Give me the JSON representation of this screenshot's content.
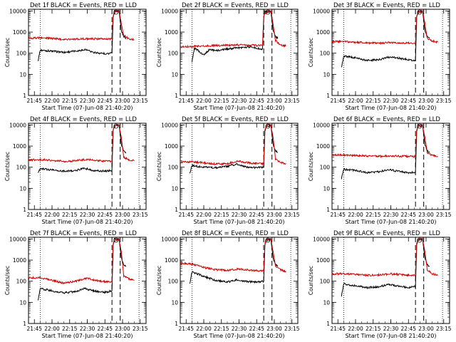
{
  "chart_data": [
    {
      "type": "line",
      "title": "Det 1f BLACK = Events, RED = LLD",
      "xlabel": "Start Time (07-Jun-08 21:40:20)",
      "ylabel": "Counts/sec",
      "yscale": "log",
      "ylim": [
        1,
        12000
      ],
      "xlim_minutes": [
        0,
        100
      ],
      "xticks": [
        "21:45",
        "22:00",
        "22:15",
        "22:30",
        "22:45",
        "23:00",
        "23:15"
      ],
      "xticks_minutes": [
        5,
        20,
        35,
        50,
        65,
        80,
        95
      ],
      "yticks": [
        "1",
        "10",
        "100",
        "1000",
        "10000"
      ],
      "yticks_values": [
        1,
        10,
        100,
        1000,
        10000
      ],
      "series": [
        {
          "name": "Events",
          "color": "#000000",
          "x": [
            8,
            10,
            20,
            30,
            40,
            48,
            55,
            65,
            71,
            72,
            73,
            75,
            77,
            79,
            81,
            83
          ],
          "y": [
            40,
            140,
            125,
            110,
            125,
            150,
            110,
            95,
            100,
            5000,
            9500,
            9000,
            10000,
            1200,
            600,
            500
          ]
        },
        {
          "name": "LLD",
          "color": "#d00000",
          "x": [
            0,
            10,
            20,
            30,
            40,
            50,
            60,
            71,
            72,
            74,
            77,
            79,
            81,
            85,
            88,
            90
          ],
          "y": [
            520,
            530,
            500,
            460,
            470,
            480,
            475,
            470,
            6000,
            9500,
            9800,
            2500,
            700,
            500,
            450,
            440
          ]
        }
      ],
      "vlines_dotted_minutes": [
        10,
        94
      ],
      "vlines_dashed_minutes": [
        71,
        78
      ]
    },
    {
      "type": "line",
      "title": "Det 2f BLACK = Events, RED = LLD",
      "xlabel": "Start Time (07-Jun-08 21:40:20)",
      "ylabel": "Counts/sec",
      "yscale": "log",
      "ylim": [
        1,
        12000
      ],
      "xlim_minutes": [
        0,
        100
      ],
      "xticks": [
        "21:45",
        "22:00",
        "22:15",
        "22:30",
        "22:45",
        "23:00",
        "23:15"
      ],
      "xticks_minutes": [
        5,
        20,
        35,
        50,
        65,
        80,
        95
      ],
      "yticks": [
        "1",
        "10",
        "100",
        "1000",
        "10000"
      ],
      "yticks_values": [
        1,
        10,
        100,
        1000,
        10000
      ],
      "series": [
        {
          "name": "Events",
          "color": "#000000",
          "x": [
            10,
            12,
            15,
            20,
            25,
            30,
            40,
            50,
            60,
            65,
            70,
            71,
            72,
            74,
            77,
            79,
            81,
            83
          ],
          "y": [
            40,
            170,
            140,
            80,
            150,
            130,
            160,
            180,
            200,
            170,
            160,
            5000,
            9500,
            9000,
            10000,
            1200,
            600,
            500
          ]
        },
        {
          "name": "LLD",
          "color": "#d00000",
          "x": [
            0,
            10,
            20,
            30,
            40,
            50,
            60,
            70,
            71,
            74,
            77,
            79,
            81,
            85,
            90
          ],
          "y": [
            200,
            210,
            220,
            230,
            240,
            250,
            240,
            230,
            6000,
            9500,
            9800,
            2500,
            400,
            250,
            220
          ]
        }
      ],
      "vlines_dotted_minutes": [
        10,
        94
      ],
      "vlines_dashed_minutes": [
        71,
        78
      ]
    },
    {
      "type": "line",
      "title": "Det 3f BLACK = Events, RED = LLD",
      "xlabel": "Start Time (07-Jun-08 21:40:20)",
      "ylabel": "Counts/sec",
      "yscale": "log",
      "ylim": [
        1,
        12000
      ],
      "xlim_minutes": [
        0,
        100
      ],
      "xticks": [
        "21:45",
        "22:00",
        "22:15",
        "22:30",
        "22:45",
        "23:00",
        "23:15"
      ],
      "xticks_minutes": [
        5,
        20,
        35,
        50,
        65,
        80,
        95
      ],
      "yticks": [
        "1",
        "10",
        "100",
        "1000",
        "10000"
      ],
      "yticks_values": [
        1,
        10,
        100,
        1000,
        10000
      ],
      "series": [
        {
          "name": "Events",
          "color": "#000000",
          "x": [
            8,
            10,
            20,
            30,
            40,
            48,
            55,
            65,
            71,
            72,
            73,
            75,
            77,
            79,
            81,
            83
          ],
          "y": [
            20,
            75,
            60,
            45,
            50,
            65,
            60,
            50,
            45,
            5000,
            9500,
            9000,
            10000,
            1200,
            600,
            500
          ]
        },
        {
          "name": "LLD",
          "color": "#d00000",
          "x": [
            0,
            10,
            20,
            30,
            40,
            50,
            60,
            71,
            72,
            74,
            77,
            79,
            81,
            85,
            90
          ],
          "y": [
            360,
            350,
            330,
            310,
            300,
            320,
            300,
            290,
            6000,
            9500,
            9800,
            2500,
            500,
            380,
            340
          ]
        }
      ],
      "vlines_dotted_minutes": [
        10,
        94
      ],
      "vlines_dashed_minutes": [
        71,
        78
      ]
    },
    {
      "type": "line",
      "title": "Det 4f BLACK = Events, RED = LLD",
      "xlabel": "Start Time (07-Jun-08 21:40:20)",
      "ylabel": "Counts/sec",
      "yscale": "log",
      "ylim": [
        1,
        12000
      ],
      "xlim_minutes": [
        0,
        100
      ],
      "xticks": [
        "21:45",
        "22:00",
        "22:15",
        "22:30",
        "22:45",
        "23:00",
        "23:15"
      ],
      "xticks_minutes": [
        5,
        20,
        35,
        50,
        65,
        80,
        95
      ],
      "yticks": [
        "1",
        "10",
        "100",
        "1000",
        "10000"
      ],
      "yticks_values": [
        1,
        10,
        100,
        1000,
        10000
      ],
      "series": [
        {
          "name": "Events",
          "color": "#000000",
          "x": [
            8,
            10,
            20,
            30,
            40,
            48,
            55,
            65,
            71,
            72,
            73,
            75,
            77,
            79,
            81,
            83
          ],
          "y": [
            50,
            85,
            75,
            65,
            70,
            90,
            70,
            65,
            70,
            5000,
            9500,
            9000,
            10000,
            1200,
            600,
            500
          ]
        },
        {
          "name": "LLD",
          "color": "#d00000",
          "x": [
            0,
            10,
            20,
            30,
            40,
            50,
            60,
            71,
            72,
            74,
            77,
            79,
            81,
            85,
            90
          ],
          "y": [
            220,
            230,
            210,
            190,
            200,
            240,
            200,
            190,
            6000,
            9500,
            9800,
            2500,
            300,
            230,
            200
          ]
        }
      ],
      "vlines_dotted_minutes": [
        10,
        94
      ],
      "vlines_dashed_minutes": [
        71,
        78
      ]
    },
    {
      "type": "line",
      "title": "Det 5f BLACK = Events, RED = LLD",
      "xlabel": "Start Time (07-Jun-08 21:40:20)",
      "ylabel": "Counts/sec",
      "yscale": "log",
      "ylim": [
        1,
        12000
      ],
      "xlim_minutes": [
        0,
        100
      ],
      "xticks": [
        "21:45",
        "22:00",
        "22:15",
        "22:30",
        "22:45",
        "23:00",
        "23:15"
      ],
      "xticks_minutes": [
        5,
        20,
        35,
        50,
        65,
        80,
        95
      ],
      "yticks": [
        "1",
        "10",
        "100",
        "1000",
        "10000"
      ],
      "yticks_values": [
        1,
        10,
        100,
        1000,
        10000
      ],
      "series": [
        {
          "name": "Events",
          "color": "#000000",
          "x": [
            8,
            10,
            20,
            30,
            40,
            48,
            55,
            65,
            71,
            72,
            73,
            75,
            77,
            79,
            81,
            83
          ],
          "y": [
            50,
            120,
            100,
            95,
            110,
            140,
            105,
            95,
            100,
            5000,
            9500,
            9000,
            10000,
            1200,
            600,
            500
          ]
        },
        {
          "name": "LLD",
          "color": "#d00000",
          "x": [
            0,
            10,
            20,
            30,
            40,
            50,
            60,
            71,
            72,
            74,
            77,
            79,
            81,
            85,
            90
          ],
          "y": [
            170,
            180,
            160,
            140,
            150,
            190,
            155,
            145,
            6000,
            9500,
            9800,
            2500,
            250,
            170,
            150
          ]
        }
      ],
      "vlines_dotted_minutes": [
        10,
        94
      ],
      "vlines_dashed_minutes": [
        71,
        78
      ]
    },
    {
      "type": "line",
      "title": "Det 6f BLACK = Events, RED = LLD",
      "xlabel": "Start Time (07-Jun-08 21:40:20)",
      "ylabel": "Counts/sec",
      "yscale": "log",
      "ylim": [
        1,
        12000
      ],
      "xlim_minutes": [
        0,
        100
      ],
      "xticks": [
        "21:45",
        "22:00",
        "22:15",
        "22:30",
        "22:45",
        "23:00",
        "23:15"
      ],
      "xticks_minutes": [
        5,
        20,
        35,
        50,
        65,
        80,
        95
      ],
      "yticks": [
        "1",
        "10",
        "100",
        "1000",
        "10000"
      ],
      "yticks_values": [
        1,
        10,
        100,
        1000,
        10000
      ],
      "series": [
        {
          "name": "Events",
          "color": "#000000",
          "x": [
            8,
            10,
            20,
            30,
            40,
            48,
            55,
            65,
            71,
            72,
            73,
            75,
            77,
            79,
            81,
            83
          ],
          "y": [
            30,
            80,
            70,
            55,
            60,
            80,
            65,
            55,
            60,
            5000,
            9500,
            9000,
            10000,
            1200,
            600,
            500
          ]
        },
        {
          "name": "LLD",
          "color": "#d00000",
          "x": [
            0,
            10,
            20,
            30,
            40,
            50,
            60,
            71,
            72,
            74,
            77,
            79,
            81,
            85,
            90
          ],
          "y": [
            380,
            370,
            360,
            340,
            330,
            340,
            330,
            320,
            6000,
            9500,
            9800,
            2500,
            500,
            360,
            330
          ]
        }
      ],
      "vlines_dotted_minutes": [
        10,
        94
      ],
      "vlines_dashed_minutes": [
        71,
        78
      ]
    },
    {
      "type": "line",
      "title": "Det 7f BLACK = Events, RED = LLD",
      "xlabel": "Start Time (07-Jun-08 21:40:20)",
      "ylabel": "Counts/sec",
      "yscale": "log",
      "ylim": [
        1,
        12000
      ],
      "xlim_minutes": [
        0,
        100
      ],
      "xticks": [
        "21:45",
        "22:00",
        "22:15",
        "22:30",
        "22:45",
        "23:00",
        "23:15"
      ],
      "xticks_minutes": [
        5,
        20,
        35,
        50,
        65,
        80,
        95
      ],
      "yticks": [
        "1",
        "10",
        "100",
        "1000",
        "10000"
      ],
      "yticks_values": [
        1,
        10,
        100,
        1000,
        10000
      ],
      "series": [
        {
          "name": "Events",
          "color": "#000000",
          "x": [
            8,
            10,
            20,
            30,
            40,
            48,
            55,
            65,
            71,
            72,
            73,
            75,
            77,
            79,
            81,
            83
          ],
          "y": [
            12,
            45,
            35,
            28,
            32,
            45,
            35,
            30,
            35,
            5000,
            9500,
            9000,
            10000,
            1200,
            600,
            500
          ]
        },
        {
          "name": "LLD",
          "color": "#d00000",
          "x": [
            0,
            10,
            20,
            30,
            40,
            50,
            60,
            71,
            72,
            74,
            77,
            79,
            81,
            85,
            90
          ],
          "y": [
            140,
            150,
            110,
            80,
            100,
            140,
            100,
            90,
            6000,
            9500,
            9800,
            2500,
            180,
            130,
            110
          ]
        }
      ],
      "vlines_dotted_minutes": [
        10,
        94
      ],
      "vlines_dashed_minutes": [
        71,
        78
      ]
    },
    {
      "type": "line",
      "title": "Det 8f BLACK = Events, RED = LLD",
      "xlabel": "Start Time (07-Jun-08 21:40:20)",
      "ylabel": "Counts/sec",
      "yscale": "log",
      "ylim": [
        1,
        12000
      ],
      "xlim_minutes": [
        0,
        100
      ],
      "xticks": [
        "21:45",
        "22:00",
        "22:15",
        "22:30",
        "22:45",
        "23:00",
        "23:15"
      ],
      "xticks_minutes": [
        5,
        20,
        35,
        50,
        65,
        80,
        95
      ],
      "yticks": [
        "1",
        "10",
        "100",
        "1000",
        "10000"
      ],
      "yticks_values": [
        1,
        10,
        100,
        1000,
        10000
      ],
      "series": [
        {
          "name": "Events",
          "color": "#000000",
          "x": [
            8,
            10,
            20,
            30,
            40,
            48,
            55,
            65,
            71,
            72,
            73,
            75,
            77,
            79,
            81,
            83
          ],
          "y": [
            70,
            280,
            170,
            110,
            90,
            120,
            100,
            90,
            100,
            5000,
            9500,
            9000,
            10000,
            1200,
            600,
            500
          ]
        },
        {
          "name": "LLD",
          "color": "#d00000",
          "x": [
            0,
            10,
            20,
            30,
            40,
            50,
            60,
            71,
            72,
            74,
            77,
            79,
            81,
            85,
            90
          ],
          "y": [
            700,
            650,
            450,
            350,
            330,
            380,
            330,
            300,
            6000,
            9500,
            9800,
            2500,
            500,
            350,
            280
          ]
        }
      ],
      "vlines_dotted_minutes": [
        10,
        94
      ],
      "vlines_dashed_minutes": [
        71,
        78
      ]
    },
    {
      "type": "line",
      "title": "Det 9f BLACK = Events, RED = LLD",
      "xlabel": "Start Time (07-Jun-08 21:40:20)",
      "ylabel": "Counts/sec",
      "yscale": "log",
      "ylim": [
        1,
        12000
      ],
      "xlim_minutes": [
        0,
        100
      ],
      "xticks": [
        "21:45",
        "22:00",
        "22:15",
        "22:30",
        "22:45",
        "23:00",
        "23:15"
      ],
      "xticks_minutes": [
        5,
        20,
        35,
        50,
        65,
        80,
        95
      ],
      "yticks": [
        "1",
        "10",
        "100",
        "1000",
        "10000"
      ],
      "yticks_values": [
        1,
        10,
        100,
        1000,
        10000
      ],
      "series": [
        {
          "name": "Events",
          "color": "#000000",
          "x": [
            8,
            10,
            20,
            30,
            40,
            48,
            55,
            65,
            71,
            72,
            73,
            75,
            77,
            79,
            81,
            83
          ],
          "y": [
            20,
            75,
            60,
            50,
            55,
            70,
            60,
            50,
            55,
            5000,
            9500,
            9000,
            10000,
            1200,
            600,
            500
          ]
        },
        {
          "name": "LLD",
          "color": "#d00000",
          "x": [
            0,
            10,
            20,
            30,
            40,
            50,
            60,
            71,
            72,
            74,
            77,
            79,
            81,
            85,
            90
          ],
          "y": [
            220,
            230,
            210,
            190,
            200,
            220,
            200,
            190,
            6000,
            9500,
            9800,
            2500,
            350,
            220,
            200
          ]
        }
      ],
      "vlines_dotted_minutes": [
        10,
        94
      ],
      "vlines_dashed_minutes": [
        71,
        78
      ]
    }
  ]
}
